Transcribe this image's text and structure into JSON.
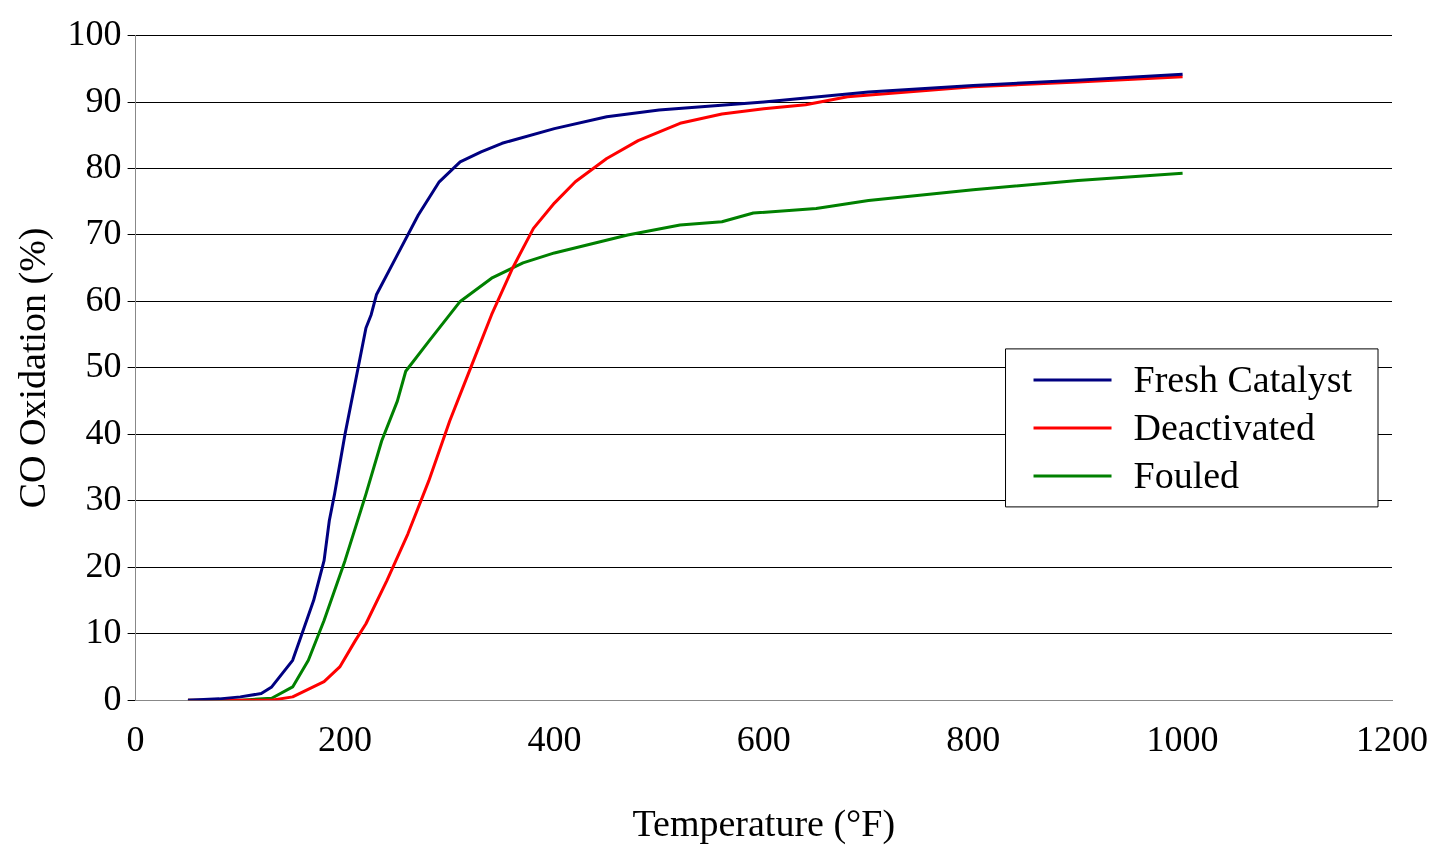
{
  "chart_data": {
    "type": "line",
    "xlabel": "Temperature (°F)",
    "ylabel": "CO Oxidation (%)",
    "xlim": [
      0,
      1200
    ],
    "xticks": [
      0,
      200,
      400,
      600,
      800,
      1000,
      1200
    ],
    "ylim": [
      0,
      100
    ],
    "yticks": [
      0,
      10,
      20,
      30,
      40,
      50,
      60,
      70,
      80,
      90,
      100
    ],
    "grid": "y",
    "legend": "right",
    "marker": "none",
    "line_style": "solid",
    "series": [
      {
        "name": "Fresh Catalyst",
        "color": "#000080",
        "x": [
          50,
          80,
          100,
          120,
          130,
          140,
          150,
          160,
          170,
          175,
          180,
          185,
          190,
          200,
          210,
          220,
          225,
          230,
          250,
          270,
          290,
          310,
          330,
          350,
          400,
          450,
          500,
          600,
          700,
          800,
          900,
          1000
        ],
        "values": [
          0,
          0.2,
          0.5,
          1,
          2,
          4,
          6,
          10.5,
          15,
          18,
          21,
          27,
          31,
          40,
          48,
          56,
          58,
          61,
          67,
          73,
          78,
          81,
          82.5,
          83.8,
          86,
          87.8,
          88.8,
          90,
          91.5,
          92.5,
          93.3,
          94.2
        ]
      },
      {
        "name": "Deactivated",
        "color": "#ff0000",
        "x": [
          50,
          100,
          130,
          150,
          180,
          195,
          210,
          220,
          240,
          260,
          280,
          300,
          320,
          340,
          360,
          380,
          400,
          420,
          450,
          480,
          520,
          560,
          600,
          640,
          680,
          800,
          900,
          1000
        ],
        "values": [
          0,
          0,
          0,
          0.5,
          2.8,
          5,
          9,
          11.5,
          18,
          25,
          33,
          42,
          50,
          58,
          65,
          71,
          74.8,
          78,
          81.5,
          84.2,
          86.8,
          88.2,
          89,
          89.6,
          90.8,
          92.3,
          93,
          93.8
        ]
      },
      {
        "name": "Fouled",
        "color": "#008000",
        "x": [
          50,
          100,
          130,
          150,
          165,
          180,
          200,
          220,
          235,
          250,
          258,
          280,
          310,
          340,
          370,
          400,
          470,
          520,
          560,
          590,
          650,
          700,
          800,
          900,
          1000
        ],
        "values": [
          0,
          0,
          0.3,
          2,
          6,
          12,
          21,
          31,
          39,
          45,
          49.5,
          54,
          60,
          63.5,
          65.8,
          67.3,
          70,
          71.5,
          72,
          73.3,
          74,
          75.2,
          76.8,
          78.2,
          79.3
        ]
      }
    ]
  }
}
